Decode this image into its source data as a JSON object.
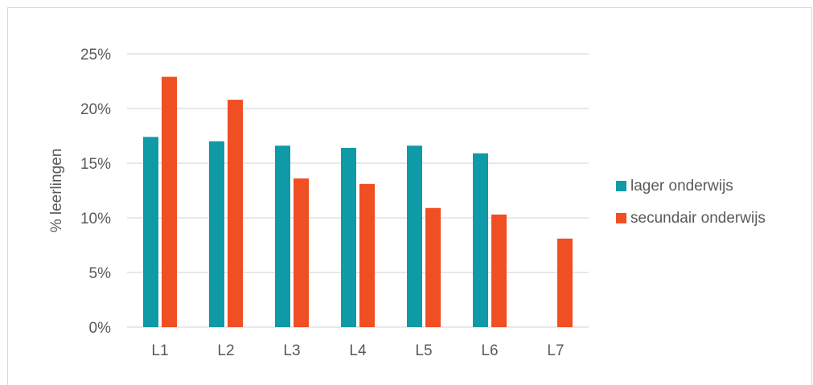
{
  "chart_data": {
    "type": "bar",
    "categories": [
      "L1",
      "L2",
      "L3",
      "L4",
      "L5",
      "L6",
      "L7"
    ],
    "series": [
      {
        "name": "lager onderwijs",
        "color": "#0f9aa8",
        "values": [
          17.4,
          17.0,
          16.6,
          16.4,
          16.6,
          15.9,
          null
        ]
      },
      {
        "name": "secundair onderwijs",
        "color": "#f04e23",
        "values": [
          22.9,
          20.8,
          13.6,
          13.1,
          10.9,
          10.3,
          8.1
        ]
      }
    ],
    "title": "",
    "xlabel": "",
    "ylabel": "% leerlingen",
    "ylim": [
      0,
      25
    ],
    "yticks": [
      0,
      5,
      10,
      15,
      20,
      25
    ],
    "ytick_labels": [
      "0%",
      "5%",
      "10%",
      "15%",
      "20%",
      "25%"
    ],
    "grid": true,
    "legend_position": "right",
    "colors": {
      "gridline": "#d9d9d9",
      "text": "#595959",
      "axis": "#d9d9d9"
    }
  }
}
